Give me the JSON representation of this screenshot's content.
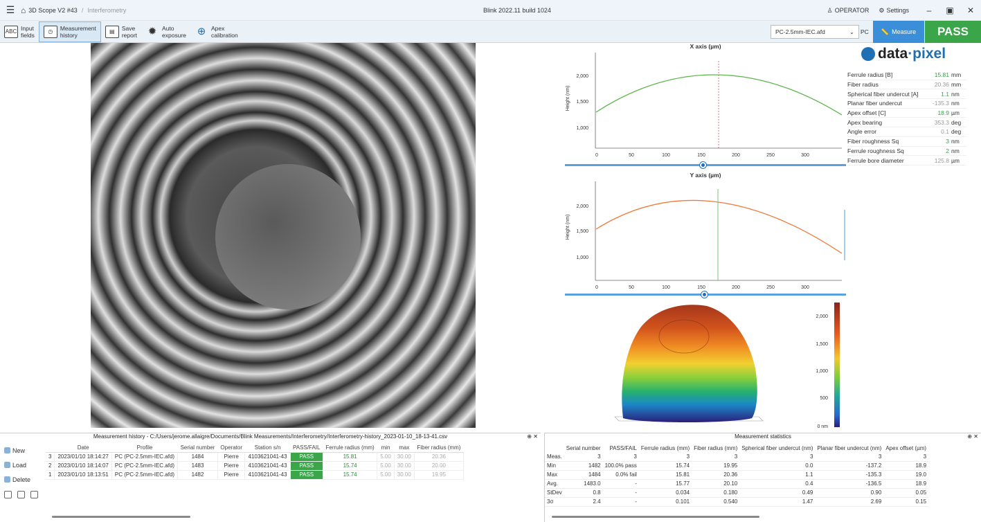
{
  "titlebar": {
    "app": "3D Scope V2 #43",
    "section": "Interferometry",
    "center": "Blink 2022.11 build 1024",
    "user": "OPERATOR",
    "settings": "Settings",
    "minimize": "–",
    "restore": "▣",
    "close": "✕"
  },
  "ribbon": {
    "buttons": [
      {
        "icon": "ABC",
        "line1": "Input",
        "line2": "fields"
      },
      {
        "icon": "◷",
        "line1": "Measurement",
        "line2": "history"
      },
      {
        "icon": "▤",
        "line1": "Save",
        "line2": "report"
      },
      {
        "icon": "✹",
        "line1": "Auto",
        "line2": "exposure"
      },
      {
        "icon": "⊕",
        "line1": "Apex",
        "line2": "calibration"
      }
    ],
    "profile": "PC-2.5mm-IEC.afd",
    "profile_suffix": "PC",
    "measure": "Measure",
    "result": "PASS"
  },
  "colors": {
    "pass": "#3aa549",
    "accent": "#3a8fd8",
    "x_curve": "#5bb548",
    "y_curve": "#f07836"
  },
  "xplot": {
    "title": "X axis (µm)",
    "ylabel": "Height (nm)",
    "yticks": [
      "2,000",
      "1,500",
      "1,000"
    ],
    "xticks": [
      "0",
      "50",
      "100",
      "150",
      "200",
      "250",
      "300"
    ]
  },
  "yplot": {
    "title": "Y axis (µm)",
    "ylabel": "Height (nm)",
    "yticks": [
      "2,000",
      "1,500",
      "1,000"
    ],
    "xticks": [
      "0",
      "50",
      "100",
      "150",
      "200",
      "250",
      "300"
    ]
  },
  "colorbar": {
    "ticks": [
      "2,000",
      "1,500",
      "1,000",
      "500",
      "0 nm"
    ]
  },
  "logo": {
    "a": "data",
    "b": "·pixel"
  },
  "props": [
    {
      "label": "Ferrule radius [B]",
      "value": "15.81",
      "unit": "mm",
      "style": "g"
    },
    {
      "label": "Fiber radius",
      "value": "20.36",
      "unit": "mm",
      "style": "gr"
    },
    {
      "label": "Spherical fiber undercut [A]",
      "value": "1.1",
      "unit": "nm",
      "style": "g"
    },
    {
      "label": "Planar fiber undercut",
      "value": "-135.3",
      "unit": "nm",
      "style": "gr"
    },
    {
      "label": "Apex offset [C]",
      "value": "18.9",
      "unit": "µm",
      "style": "g"
    },
    {
      "label": "Apex bearing",
      "value": "353.3",
      "unit": "deg",
      "style": "gr"
    },
    {
      "label": "Angle error",
      "value": "0.1",
      "unit": "deg",
      "style": "gr"
    },
    {
      "label": "Fiber roughness Sq",
      "value": "3",
      "unit": "nm",
      "style": "g"
    },
    {
      "label": "Ferrule roughness Sq",
      "value": "2",
      "unit": "nm",
      "style": "g"
    },
    {
      "label": "Ferrule bore diameter",
      "value": "125.8",
      "unit": "µm",
      "style": "gr"
    }
  ],
  "history": {
    "caption": "Measurement history - C:/Users/jerome.allaigre/Documents/Blink Measurements/Interferometry/Interferometry-history_2023-01-10_18-13-41.csv",
    "pin": "⊕ ✕",
    "actions": [
      "New",
      "Load",
      "Delete"
    ],
    "columns": [
      "",
      "Date",
      "Profile",
      "Serial number",
      "Operator",
      "Station s/n",
      "PASS/FAIL",
      "Ferrule radius (mm)",
      "min",
      "max",
      "Fiber radius (mm)"
    ],
    "rows": [
      [
        "3",
        "2023/01/10 18:14:27",
        "PC (PC-2.5mm-IEC.afd)",
        "1484",
        "Pierre",
        "4103621041-43",
        "PASS",
        "15.81",
        "5.00",
        "30.00",
        "20.36"
      ],
      [
        "2",
        "2023/01/10 18:14:07",
        "PC (PC-2.5mm-IEC.afd)",
        "1483",
        "Pierre",
        "4103621041-43",
        "PASS",
        "15.74",
        "5.00",
        "30.00",
        "20.00"
      ],
      [
        "1",
        "2023/01/10 18:13:51",
        "PC (PC-2.5mm-IEC.afd)",
        "1482",
        "Pierre",
        "4103621041-43",
        "PASS",
        "15.74",
        "5.00",
        "30.00",
        "19.95"
      ]
    ]
  },
  "stats": {
    "caption": "Measurement statistics",
    "pin": "⊕ ✕",
    "columns": [
      "",
      "Serial number",
      "PASS/FAIL",
      "Ferrule radius (mm)",
      "Fiber radius (mm)",
      "Spherical fiber undercut (nm)",
      "Planar fiber undercut (nm)",
      "Apex offset (µm)"
    ],
    "rows": [
      [
        "Meas.",
        "3",
        "3",
        "3",
        "3",
        "3",
        "3",
        "3"
      ],
      [
        "Min",
        "1482",
        "100.0% pass",
        "15.74",
        "19.95",
        "0.0",
        "-137.2",
        "18.9"
      ],
      [
        "Max",
        "1484",
        "0.0% fail",
        "15.81",
        "20.36",
        "1.1",
        "-135.3",
        "19.0"
      ],
      [
        "Avg.",
        "1483.0",
        "-",
        "15.77",
        "20.10",
        "0.4",
        "-136.5",
        "18.9"
      ],
      [
        "StDev",
        "0.8",
        "-",
        "0.034",
        "0.180",
        "0.49",
        "0.90",
        "0.05"
      ],
      [
        "3σ",
        "2.4",
        "-",
        "0.101",
        "0.540",
        "1.47",
        "2.69",
        "0.15"
      ]
    ]
  }
}
